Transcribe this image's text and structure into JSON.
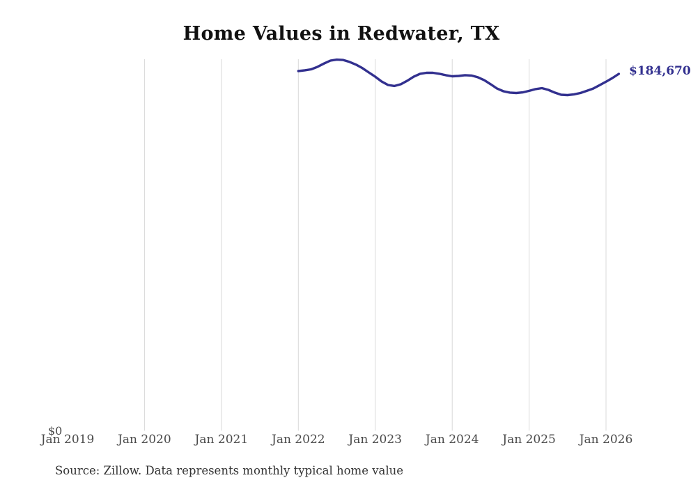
{
  "title": "Home Values in Redwater, TX",
  "source_note": "Source: Zillow. Data represents monthly typical home value",
  "colors": {
    "line": "#32308f",
    "end_label": "#32308f",
    "gridline": "#d9d9d9",
    "axis_text": "#4a4a4a",
    "title_text": "#111111",
    "source_text": "#333333",
    "background": "#ffffff"
  },
  "y_axis": {
    "zero_label": "$0"
  },
  "chart_data": {
    "type": "line",
    "title": "Home Values in Redwater, TX",
    "xlabel": "",
    "ylabel": "",
    "x_tick_labels": [
      "Jan 2019",
      "Jan 2020",
      "Jan 2021",
      "Jan 2022",
      "Jan 2023",
      "Jan 2024",
      "Jan 2025",
      "Jan 2026"
    ],
    "gridlines": "vertical at year ticks Jan 2020 through Jan 2026 (none at Jan 2019)",
    "legend": "none",
    "ylim": [
      0,
      200000
    ],
    "y_zero_label": "$0",
    "end_label": "$184,670",
    "end_value": 184670,
    "series": [
      {
        "name": "Monthly typical home value",
        "start": "Jan 2022",
        "frequency": "monthly",
        "values": [
          186100,
          186500,
          187000,
          188300,
          190000,
          191500,
          192000,
          191800,
          190800,
          189400,
          187600,
          185400,
          183200,
          180700,
          178900,
          178400,
          179300,
          181100,
          183200,
          184700,
          185200,
          185200,
          184700,
          184000,
          183400,
          183600,
          184000,
          183800,
          182900,
          181400,
          179300,
          177100,
          175700,
          175000,
          174800,
          175100,
          175900,
          176800,
          177300,
          176400,
          175000,
          173900,
          173700,
          174100,
          174800,
          175900,
          177100,
          178800,
          180600,
          182500,
          184670
        ]
      }
    ]
  }
}
